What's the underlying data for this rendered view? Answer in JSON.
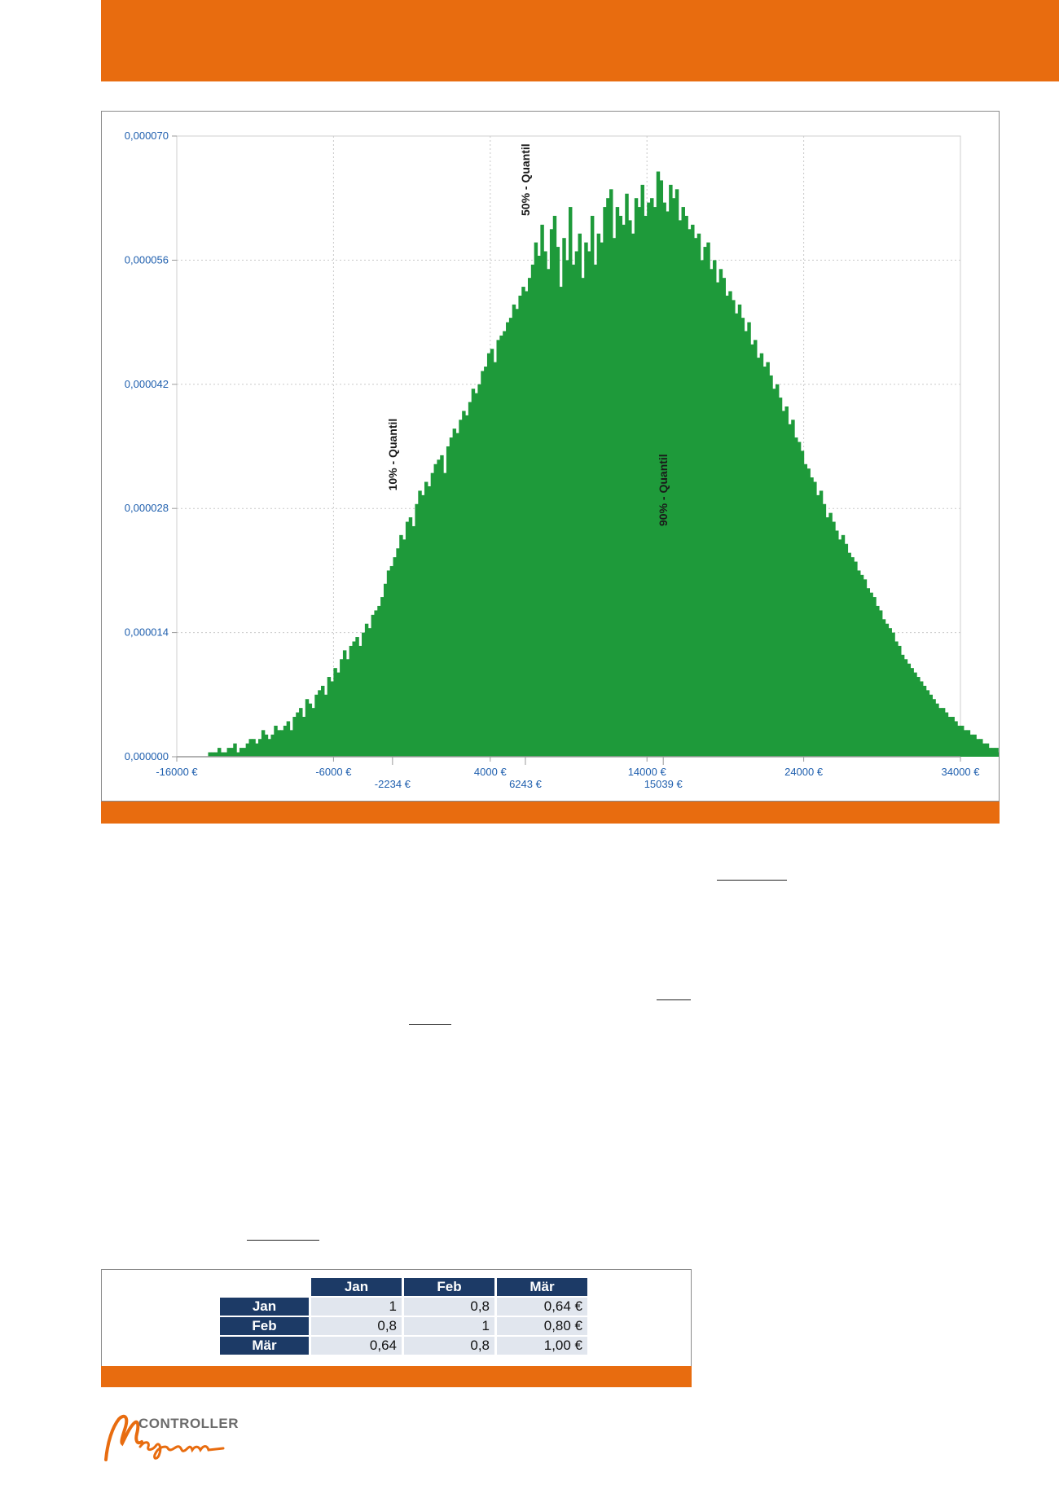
{
  "chart_data": {
    "type": "bar",
    "subtype": "histogram",
    "color": "#1e9a3a",
    "x_unit": "€",
    "xlim": [
      -16000,
      34000
    ],
    "ylim": [
      0,
      7e-05
    ],
    "x_ticks": [
      "-16000 €",
      "-6000 €",
      "4000 €",
      "14000 €",
      "24000 €",
      "34000 €"
    ],
    "x_ticks_values": [
      -16000,
      -6000,
      4000,
      14000,
      24000,
      34000
    ],
    "x_ticks_secondary": [
      "-2234 €",
      "6243 €",
      "15039 €"
    ],
    "x_ticks_secondary_values": [
      -2234,
      6243,
      15039
    ],
    "y_ticks": [
      "0,000000",
      "0,000014",
      "0,000028",
      "0,000042",
      "0,000056",
      "0,000070"
    ],
    "y_ticks_values": [
      0,
      1.4e-05,
      2.8e-05,
      4.2e-05,
      5.6e-05,
      7e-05
    ],
    "grid": true,
    "annotations": [
      {
        "text": "10% - Quantil",
        "x": -2234
      },
      {
        "text": "50% - Quantil",
        "x": 6243
      },
      {
        "text": "90% - Quantil",
        "x": 15039
      }
    ],
    "bins": {
      "start": -14000,
      "width": 200,
      "values": [
        5e-07,
        5e-07,
        5e-07,
        1e-06,
        5e-07,
        5e-07,
        1e-06,
        1e-06,
        1.5e-06,
        5e-07,
        1e-06,
        1e-06,
        1.5e-06,
        2e-06,
        2e-06,
        1.5e-06,
        2e-06,
        3e-06,
        2.5e-06,
        2e-06,
        2.5e-06,
        3.5e-06,
        3e-06,
        3e-06,
        3.5e-06,
        4e-06,
        3e-06,
        4.5e-06,
        5e-06,
        5.5e-06,
        4.5e-06,
        6.5e-06,
        6e-06,
        5.5e-06,
        7e-06,
        7.5e-06,
        8e-06,
        7e-06,
        9e-06,
        8.5e-06,
        1e-05,
        9.5e-06,
        1.1e-05,
        1.2e-05,
        1.1e-05,
        1.25e-05,
        1.3e-05,
        1.35e-05,
        1.25e-05,
        1.4e-05,
        1.5e-05,
        1.45e-05,
        1.6e-05,
        1.65e-05,
        1.7e-05,
        1.8e-05,
        1.95e-05,
        2.1e-05,
        2.15e-05,
        2.25e-05,
        2.35e-05,
        2.5e-05,
        2.45e-05,
        2.65e-05,
        2.7e-05,
        2.6e-05,
        2.85e-05,
        3e-05,
        2.95e-05,
        3.1e-05,
        3.05e-05,
        3.2e-05,
        3.3e-05,
        3.35e-05,
        3.4e-05,
        3.2e-05,
        3.5e-05,
        3.6e-05,
        3.7e-05,
        3.65e-05,
        3.8e-05,
        3.9e-05,
        3.85e-05,
        4e-05,
        4.15e-05,
        4.1e-05,
        4.2e-05,
        4.35e-05,
        4.4e-05,
        4.55e-05,
        4.6e-05,
        4.45e-05,
        4.7e-05,
        4.75e-05,
        4.8e-05,
        4.9e-05,
        4.95e-05,
        5.1e-05,
        5.05e-05,
        5.2e-05,
        5.3e-05,
        5.25e-05,
        5.4e-05,
        5.55e-05,
        5.8e-05,
        5.65e-05,
        6e-05,
        5.7e-05,
        5.5e-05,
        5.95e-05,
        6.1e-05,
        5.75e-05,
        5.3e-05,
        5.85e-05,
        5.6e-05,
        6.2e-05,
        5.55e-05,
        5.7e-05,
        5.9e-05,
        5.4e-05,
        5.8e-05,
        5.7e-05,
        6.1e-05,
        5.55e-05,
        5.9e-05,
        5.8e-05,
        6.2e-05,
        6.3e-05,
        6.4e-05,
        5.85e-05,
        6.2e-05,
        6.1e-05,
        6e-05,
        6.35e-05,
        6.05e-05,
        5.9e-05,
        6.3e-05,
        6.2e-05,
        6.45e-05,
        6.1e-05,
        6.25e-05,
        6.3e-05,
        6.2e-05,
        6.6e-05,
        6.5e-05,
        6.25e-05,
        6.15e-05,
        6.45e-05,
        6.3e-05,
        6.4e-05,
        6.05e-05,
        6.2e-05,
        6.1e-05,
        5.95e-05,
        6e-05,
        5.85e-05,
        5.9e-05,
        5.6e-05,
        5.75e-05,
        5.8e-05,
        5.5e-05,
        5.6e-05,
        5.35e-05,
        5.5e-05,
        5.4e-05,
        5.2e-05,
        5.25e-05,
        5.15e-05,
        5e-05,
        5.1e-05,
        4.95e-05,
        4.8e-05,
        4.9e-05,
        4.65e-05,
        4.7e-05,
        4.5e-05,
        4.55e-05,
        4.4e-05,
        4.45e-05,
        4.3e-05,
        4.15e-05,
        4.2e-05,
        4.05e-05,
        3.9e-05,
        3.95e-05,
        3.75e-05,
        3.8e-05,
        3.6e-05,
        3.55e-05,
        3.45e-05,
        3.3e-05,
        3.25e-05,
        3.15e-05,
        3.1e-05,
        2.95e-05,
        3e-05,
        2.85e-05,
        2.7e-05,
        2.75e-05,
        2.65e-05,
        2.55e-05,
        2.45e-05,
        2.5e-05,
        2.4e-05,
        2.3e-05,
        2.25e-05,
        2.2e-05,
        2.1e-05,
        2.05e-05,
        2e-05,
        1.9e-05,
        1.85e-05,
        1.8e-05,
        1.7e-05,
        1.65e-05,
        1.55e-05,
        1.5e-05,
        1.45e-05,
        1.4e-05,
        1.3e-05,
        1.25e-05,
        1.15e-05,
        1.1e-05,
        1.05e-05,
        1e-05,
        9.5e-06,
        9e-06,
        8.5e-06,
        8e-06,
        7.5e-06,
        7e-06,
        6.5e-06,
        6e-06,
        5.5e-06,
        5.5e-06,
        5e-06,
        4.5e-06,
        4.5e-06,
        4e-06,
        3.5e-06,
        3.5e-06,
        3e-06,
        3e-06,
        2.5e-06,
        2.5e-06,
        2e-06,
        2e-06,
        1.5e-06,
        1.5e-06,
        1e-06,
        1e-06,
        1e-06,
        5e-07,
        5e-07,
        5e-07,
        5e-07
      ]
    }
  },
  "colors": {
    "accent_orange": "#e86c0f",
    "histogram_green": "#1e9a3a",
    "axis_blue": "#1f5fae",
    "table_header_navy": "#1c3a66",
    "table_cell_bg": "#e1e6ee"
  },
  "correlation_table": {
    "columns": [
      "Jan",
      "Feb",
      "Mär"
    ],
    "rows": [
      {
        "label": "Jan",
        "cells": [
          "1",
          "0,8",
          "0,64 €"
        ]
      },
      {
        "label": "Feb",
        "cells": [
          "0,8",
          "1",
          "0,80 €"
        ]
      },
      {
        "label": "Mär",
        "cells": [
          "0,64",
          "0,8",
          "1,00 €"
        ]
      }
    ]
  },
  "logo": {
    "text": "CONTROLLER",
    "script_text": "Magazin"
  }
}
